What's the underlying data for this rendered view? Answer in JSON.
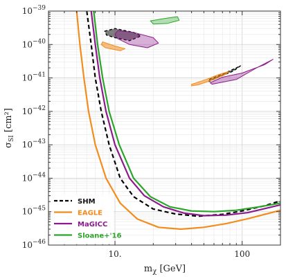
{
  "chart_data": {
    "type": "line",
    "xlabel": "m_χ [GeV]",
    "ylabel": "σ_SI [cm²]",
    "x_scale": "log",
    "y_scale": "log",
    "xlim": [
      3,
      200
    ],
    "ylim": [
      1e-46,
      1e-39
    ],
    "grid": true,
    "legend_position": "bottom-left",
    "x_ticks": [
      {
        "value": 10,
        "label": "10."
      },
      {
        "value": 100,
        "label": "100"
      }
    ],
    "y_ticks": [
      {
        "value": 1e-39,
        "exp": "−39"
      },
      {
        "value": 1e-40,
        "exp": "−40"
      },
      {
        "value": 1e-41,
        "exp": "−41"
      },
      {
        "value": 1e-42,
        "exp": "−42"
      },
      {
        "value": 1e-43,
        "exp": "−43"
      },
      {
        "value": 1e-44,
        "exp": "−44"
      },
      {
        "value": 1e-45,
        "exp": "−45"
      },
      {
        "value": 1e-46,
        "exp": "−46"
      }
    ],
    "series": [
      {
        "name": "SHM",
        "color": "#000000",
        "dash": true,
        "points": [
          [
            6.0,
            1e-39
          ],
          [
            6.5,
            1e-40
          ],
          [
            7.0,
            1e-41
          ],
          [
            7.8,
            1e-42
          ],
          [
            9,
            1e-43
          ],
          [
            11,
            1e-44
          ],
          [
            14,
            2.8e-45
          ],
          [
            20,
            1.2e-45
          ],
          [
            30,
            8.5e-46
          ],
          [
            45,
            7.3e-46
          ],
          [
            70,
            8.3e-46
          ],
          [
            100,
            1.05e-45
          ],
          [
            150,
            1.5e-45
          ],
          [
            200,
            2.1e-45
          ]
        ]
      },
      {
        "name": "EAGLE",
        "color": "#f28c1c",
        "dash": false,
        "points": [
          [
            5.0,
            1e-39
          ],
          [
            5.3,
            1e-40
          ],
          [
            5.7,
            1e-41
          ],
          [
            6.2,
            1e-42
          ],
          [
            7.0,
            1e-43
          ],
          [
            8.5,
            1e-44
          ],
          [
            11,
            1.8e-45
          ],
          [
            15,
            6e-46
          ],
          [
            22,
            3.4e-46
          ],
          [
            33,
            3e-46
          ],
          [
            50,
            3.4e-46
          ],
          [
            75,
            4.4e-46
          ],
          [
            110,
            6.1e-46
          ],
          [
            200,
            1.1e-45
          ]
        ]
      },
      {
        "name": "MaGICC",
        "color": "#8b1a8b",
        "dash": false,
        "points": [
          [
            6.5,
            1e-39
          ],
          [
            7.0,
            1e-40
          ],
          [
            7.6,
            1e-41
          ],
          [
            8.5,
            1e-42
          ],
          [
            10,
            1e-43
          ],
          [
            13,
            1e-44
          ],
          [
            17,
            3e-45
          ],
          [
            24,
            1.4e-45
          ],
          [
            35,
            9e-46
          ],
          [
            50,
            7.6e-46
          ],
          [
            75,
            7.9e-46
          ],
          [
            110,
            9.3e-46
          ],
          [
            200,
            1.6e-45
          ]
        ]
      },
      {
        "name": "Sloane+'16",
        "color": "#2aa52a",
        "dash": false,
        "points": [
          [
            6.8,
            1e-39
          ],
          [
            7.3,
            1e-40
          ],
          [
            8,
            1e-41
          ],
          [
            9,
            1e-42
          ],
          [
            10.8,
            1e-43
          ],
          [
            14,
            1e-44
          ],
          [
            19,
            2.8e-45
          ],
          [
            27,
            1.4e-45
          ],
          [
            40,
            1.05e-45
          ],
          [
            60,
            1e-45
          ],
          [
            90,
            1.1e-45
          ],
          [
            130,
            1.35e-45
          ],
          [
            200,
            1.8e-45
          ]
        ]
      }
    ],
    "regions": [
      {
        "name": "SHM",
        "color": "#000000",
        "fill_opacity": 0.5,
        "dashed_outline": true,
        "points": [
          [
            8.3,
            2.5e-40
          ],
          [
            10,
            3e-40
          ],
          [
            14,
            2.3e-40
          ],
          [
            16,
            1.8e-40
          ],
          [
            13,
            1.3e-40
          ],
          [
            10,
            1.6e-40
          ],
          [
            8.6,
            1.9e-40
          ]
        ]
      },
      {
        "name": "SHM",
        "color": "#000000",
        "fill_opacity": 0.5,
        "dashed_outline": true,
        "points": [
          [
            55,
            9e-42
          ],
          [
            70,
            1.3e-41
          ],
          [
            90,
            2e-41
          ],
          [
            97,
            2.3e-41
          ],
          [
            85,
            1.6e-41
          ],
          [
            65,
            1.05e-41
          ],
          [
            55,
            7.8e-42
          ]
        ]
      },
      {
        "name": "MaGICC",
        "color": "#8b1a8b",
        "fill_opacity": 0.35,
        "dashed_outline": false,
        "points": [
          [
            10.5,
            2.6e-40
          ],
          [
            14,
            2.3e-40
          ],
          [
            20,
            1.6e-40
          ],
          [
            22,
            1.1e-40
          ],
          [
            18,
            8e-41
          ],
          [
            13,
            1e-40
          ],
          [
            10.5,
            1.5e-40
          ],
          [
            10,
            2e-40
          ]
        ]
      },
      {
        "name": "MaGICC",
        "color": "#8b1a8b",
        "fill_opacity": 0.35,
        "dashed_outline": false,
        "points": [
          [
            58,
            6.5e-42
          ],
          [
            90,
            9e-42
          ],
          [
            130,
            2e-41
          ],
          [
            175,
            3.6e-41
          ],
          [
            150,
            2.5e-41
          ],
          [
            100,
            1.4e-41
          ],
          [
            70,
            1.05e-41
          ],
          [
            56,
            7.2e-42
          ]
        ]
      },
      {
        "name": "EAGLE",
        "color": "#f28c1c",
        "fill_opacity": 0.55,
        "dashed_outline": false,
        "points": [
          [
            8,
            1.2e-40
          ],
          [
            10,
            9e-41
          ],
          [
            12,
            7.5e-41
          ],
          [
            11,
            6.5e-41
          ],
          [
            8.4,
            8e-41
          ],
          [
            7.8,
            1e-40
          ]
        ]
      },
      {
        "name": "EAGLE",
        "color": "#f28c1c",
        "fill_opacity": 0.55,
        "dashed_outline": false,
        "points": [
          [
            40,
            6.4e-42
          ],
          [
            52,
            9e-42
          ],
          [
            65,
            1.25e-41
          ],
          [
            78,
            1.55e-41
          ],
          [
            75,
            1.3e-41
          ],
          [
            60,
            9e-42
          ],
          [
            45,
            6.2e-42
          ],
          [
            40,
            5.8e-42
          ]
        ]
      },
      {
        "name": "Sloane+'16",
        "color": "#2aa52a",
        "fill_opacity": 0.35,
        "dashed_outline": false,
        "points": [
          [
            19,
            5.1e-40
          ],
          [
            26,
            6.2e-40
          ],
          [
            31,
            6.8e-40
          ],
          [
            32,
            5.3e-40
          ],
          [
            26,
            4.3e-40
          ],
          [
            20,
            4.1e-40
          ]
        ]
      }
    ]
  }
}
